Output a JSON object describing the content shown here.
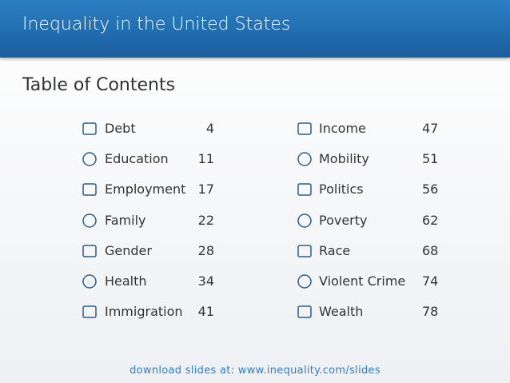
{
  "header": {
    "title": "Inequality in the United States"
  },
  "subtitle": "Table of Contents",
  "columns": [
    [
      {
        "label": "Debt",
        "page": 4
      },
      {
        "label": "Education",
        "page": 11
      },
      {
        "label": "Employment",
        "page": 17
      },
      {
        "label": "Family",
        "page": 22
      },
      {
        "label": "Gender",
        "page": 28
      },
      {
        "label": "Health",
        "page": 34
      },
      {
        "label": "Immigration",
        "page": 41
      }
    ],
    [
      {
        "label": "Income",
        "page": 47
      },
      {
        "label": "Mobility",
        "page": 51
      },
      {
        "label": "Politics",
        "page": 56
      },
      {
        "label": "Poverty",
        "page": 62
      },
      {
        "label": "Race",
        "page": 68
      },
      {
        "label": "Violent Crime",
        "page": 74
      },
      {
        "label": "Wealth",
        "page": 78
      }
    ]
  ],
  "footer": "download slides at: www.inequality.com/slides"
}
